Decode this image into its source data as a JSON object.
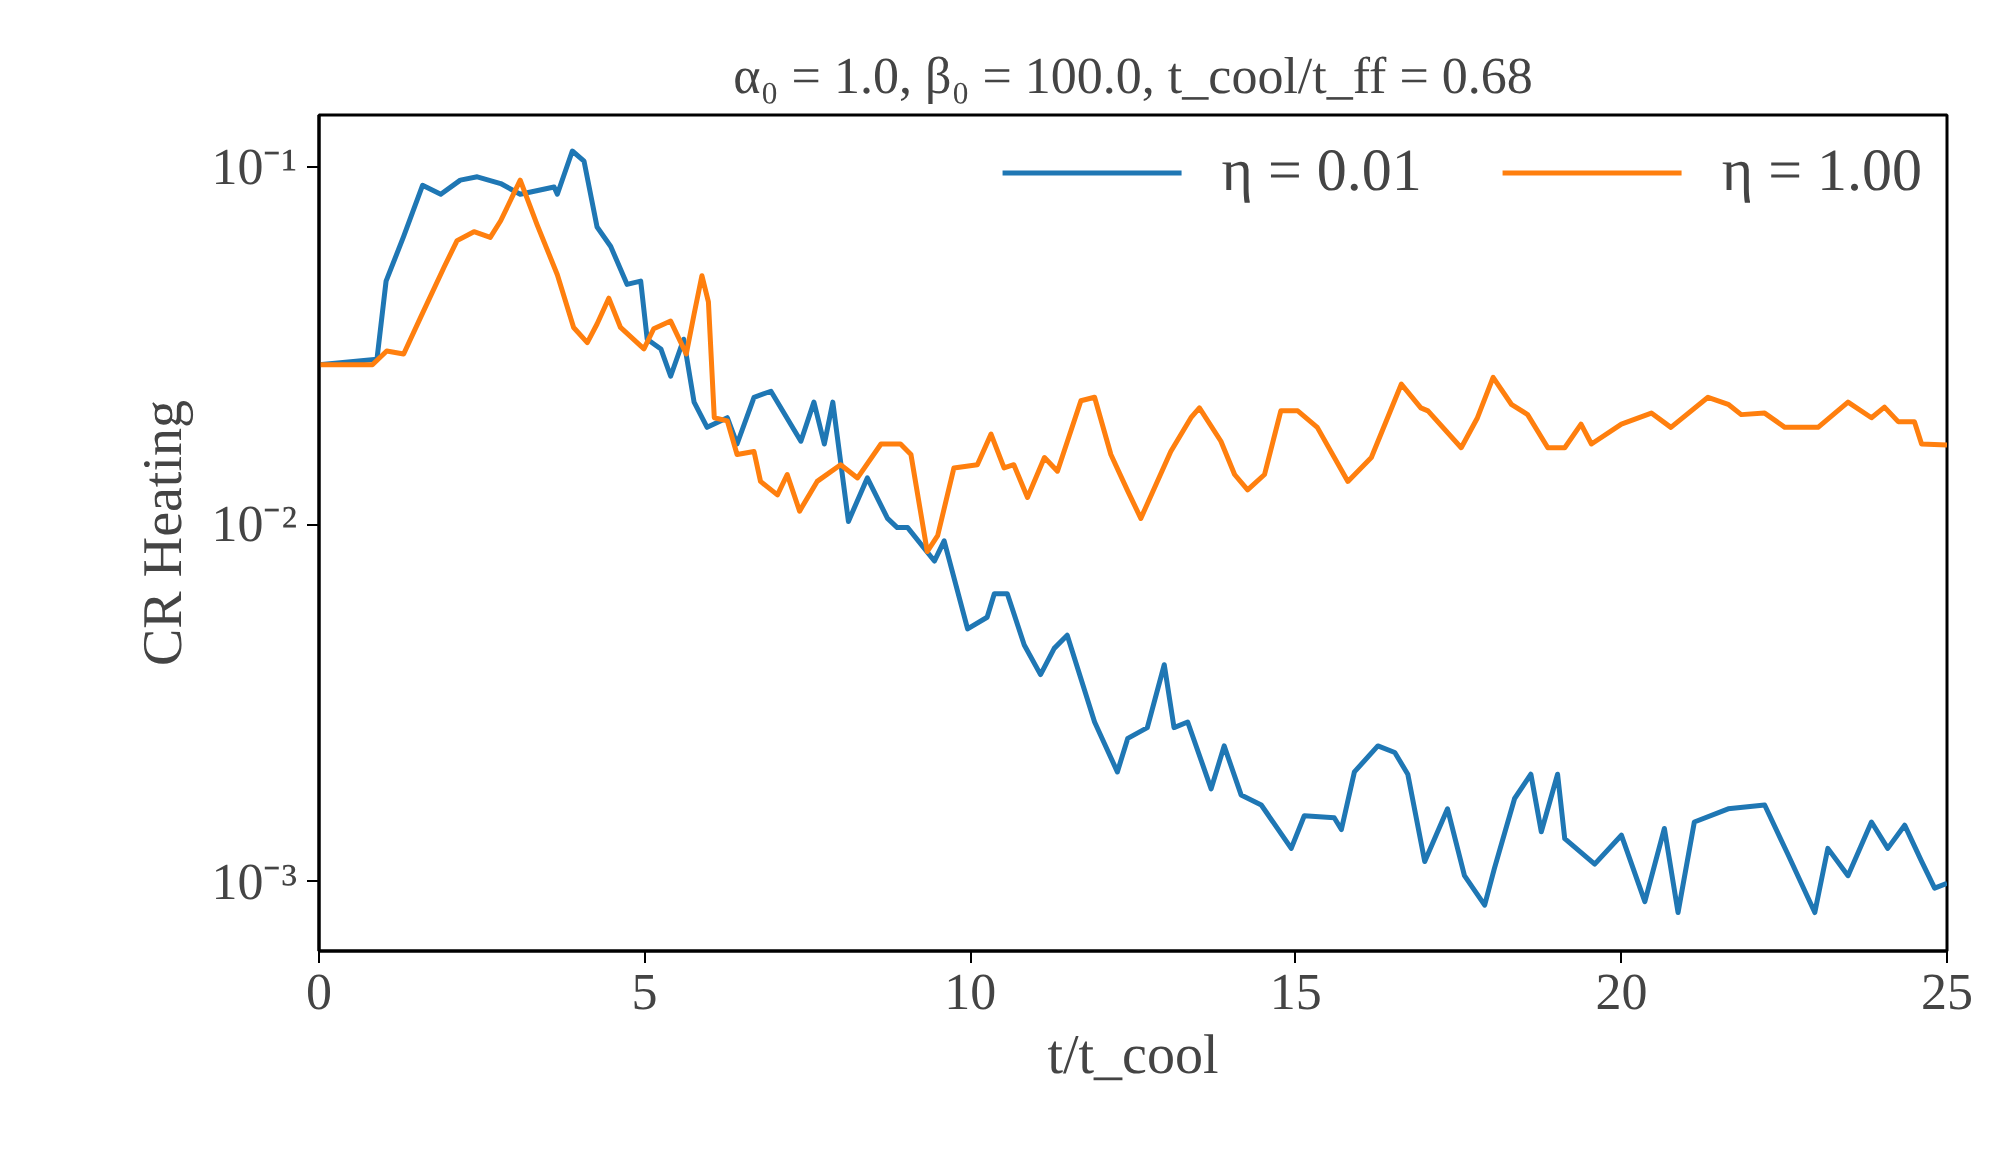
{
  "chart_data": {
    "type": "line",
    "title": "α₀ = 1.0, β₀ = 100.0, t_cool/t_ff = 0.68",
    "xlabel": "t/t_cool",
    "ylabel": "CR Heating",
    "log": "y",
    "grid": false,
    "legend": "top right",
    "line_style": "solid",
    "marker": "none",
    "xlim": [
      0,
      25
    ],
    "xticks": [
      0,
      5,
      10,
      15,
      20,
      25
    ],
    "ylim": [
      0.00064,
      0.14
    ],
    "yticks": [
      {
        "value": 0.001,
        "label": "10⁻³"
      },
      {
        "value": 0.01,
        "label": "10⁻²"
      },
      {
        "value": 0.1,
        "label": "10⁻¹"
      }
    ],
    "series": [
      {
        "name": "η = 0.01",
        "color": "#1f77b4",
        "x": [
          0,
          0.89,
          1.03,
          1.3,
          1.59,
          1.87,
          2.17,
          2.43,
          2.79,
          3.09,
          3.61,
          3.66,
          3.89,
          4.07,
          4.27,
          4.48,
          4.73,
          4.94,
          5.04,
          5.25,
          5.4,
          5.6,
          5.76,
          5.96,
          6.27,
          6.42,
          6.68,
          6.94,
          7.4,
          7.6,
          7.76,
          7.89,
          8.13,
          8.42,
          8.73,
          8.88,
          9.04,
          9.45,
          9.6,
          9.96,
          10.26,
          10.37,
          10.57,
          10.83,
          11.08,
          11.29,
          11.49,
          11.91,
          12.26,
          12.42,
          12.72,
          12.98,
          13.13,
          13.34,
          13.7,
          13.9,
          14.16,
          14.47,
          14.93,
          15.13,
          15.59,
          15.7,
          15.9,
          16.26,
          16.52,
          16.72,
          16.98,
          17.33,
          17.59,
          17.9,
          18.05,
          18.36,
          18.61,
          18.77,
          19.02,
          19.13,
          19.59,
          20.0,
          20.36,
          20.66,
          20.87,
          21.12,
          21.64,
          22.2,
          22.56,
          22.97,
          23.17,
          23.48,
          23.84,
          24.09,
          24.35,
          24.61,
          24.81,
          25.0
        ],
        "values": [
          0.028,
          0.029,
          0.048,
          0.064,
          0.089,
          0.084,
          0.092,
          0.094,
          0.09,
          0.084,
          0.088,
          0.084,
          0.111,
          0.104,
          0.068,
          0.06,
          0.047,
          0.048,
          0.033,
          0.031,
          0.026,
          0.033,
          0.022,
          0.0187,
          0.0199,
          0.0168,
          0.0227,
          0.0236,
          0.0171,
          0.022,
          0.0168,
          0.022,
          0.0102,
          0.0135,
          0.0104,
          0.0098,
          0.0098,
          0.0079,
          0.009,
          0.0051,
          0.0055,
          0.0064,
          0.0064,
          0.0046,
          0.0038,
          0.0045,
          0.0049,
          0.0028,
          0.00203,
          0.00252,
          0.0027,
          0.00405,
          0.0027,
          0.0028,
          0.00182,
          0.0024,
          0.00175,
          0.00164,
          0.00124,
          0.00153,
          0.00151,
          0.0014,
          0.00203,
          0.0024,
          0.0023,
          0.002,
          0.00114,
          0.0016,
          0.00104,
          0.00086,
          0.00109,
          0.00171,
          0.002,
          0.00138,
          0.002,
          0.00132,
          0.00112,
          0.00135,
          0.00088,
          0.00141,
          0.00082,
          0.00147,
          0.0016,
          0.00164,
          0.00119,
          0.00082,
          0.00124,
          0.00104,
          0.00147,
          0.00124,
          0.00144,
          0.00114,
          0.00096,
          0.00099
        ]
      },
      {
        "name": "η = 1.00",
        "color": "#ff7f0e",
        "x": [
          0,
          0.82,
          1.04,
          1.3,
          1.56,
          1.92,
          2.12,
          2.38,
          2.63,
          2.79,
          3.09,
          3.35,
          3.66,
          3.91,
          4.12,
          4.27,
          4.45,
          4.63,
          4.99,
          5.14,
          5.4,
          5.64,
          5.76,
          5.88,
          5.98,
          6.07,
          6.27,
          6.42,
          6.68,
          6.78,
          7.04,
          7.19,
          7.38,
          7.65,
          8.01,
          8.27,
          8.63,
          8.93,
          9.09,
          9.34,
          9.5,
          9.75,
          10.11,
          10.32,
          10.52,
          10.67,
          10.88,
          11.14,
          11.34,
          11.7,
          11.91,
          12.16,
          12.42,
          12.62,
          13.08,
          13.39,
          13.52,
          13.85,
          14.06,
          14.26,
          14.52,
          14.77,
          15.03,
          15.33,
          15.8,
          16.16,
          16.62,
          16.92,
          17.03,
          17.54,
          17.79,
          18.03,
          18.31,
          18.56,
          18.87,
          19.13,
          19.38,
          19.54,
          20.0,
          20.46,
          20.76,
          21.33,
          21.64,
          21.84,
          22.2,
          22.51,
          23.02,
          23.48,
          23.84,
          24.04,
          24.25,
          24.5,
          24.61,
          25.0
        ],
        "values": [
          0.028,
          0.028,
          0.0306,
          0.03,
          0.038,
          0.0525,
          0.0623,
          0.066,
          0.0636,
          0.0708,
          0.092,
          0.069,
          0.05,
          0.0356,
          0.0323,
          0.0364,
          0.043,
          0.0356,
          0.031,
          0.0353,
          0.0371,
          0.03,
          0.0388,
          0.0497,
          0.042,
          0.0199,
          0.0195,
          0.0157,
          0.016,
          0.0132,
          0.0121,
          0.0138,
          0.0109,
          0.0132,
          0.0147,
          0.0135,
          0.0168,
          0.0168,
          0.0157,
          0.0084,
          0.0093,
          0.0144,
          0.0147,
          0.0179,
          0.0144,
          0.0147,
          0.0119,
          0.0154,
          0.0141,
          0.0222,
          0.0227,
          0.0157,
          0.0124,
          0.0104,
          0.016,
          0.0199,
          0.0212,
          0.0171,
          0.0138,
          0.0125,
          0.0138,
          0.0208,
          0.0208,
          0.0187,
          0.0132,
          0.0154,
          0.0247,
          0.0212,
          0.0208,
          0.0164,
          0.0199,
          0.0258,
          0.0217,
          0.0203,
          0.0164,
          0.0164,
          0.0191,
          0.0168,
          0.0191,
          0.0205,
          0.0187,
          0.0227,
          0.0217,
          0.0203,
          0.0205,
          0.0187,
          0.0187,
          0.022,
          0.0199,
          0.0213,
          0.0194,
          0.0194,
          0.0168,
          0.0167
        ]
      }
    ]
  }
}
